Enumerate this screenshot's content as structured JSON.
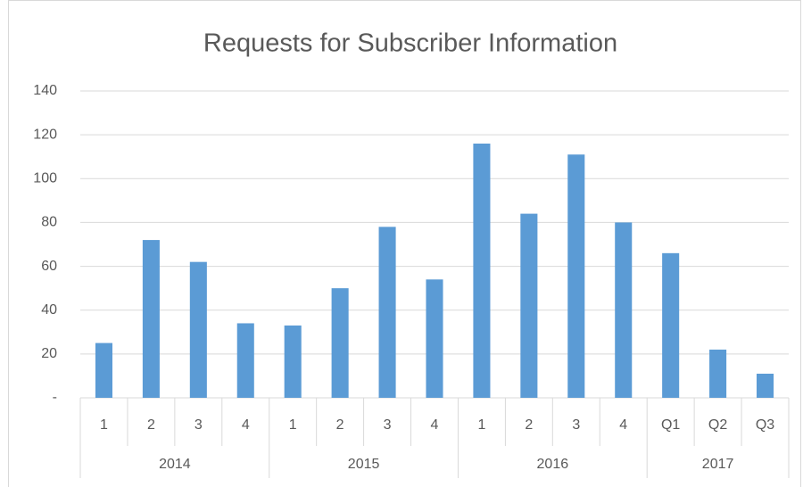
{
  "chart_data": {
    "type": "bar",
    "title": "Requests for Subscriber Information",
    "groups": [
      {
        "name": "2014",
        "categories": [
          "1",
          "2",
          "3",
          "4"
        ]
      },
      {
        "name": "2015",
        "categories": [
          "1",
          "2",
          "3",
          "4"
        ]
      },
      {
        "name": "2016",
        "categories": [
          "1",
          "2",
          "3",
          "4"
        ]
      },
      {
        "name": "2017",
        "categories": [
          "Q1",
          "Q2",
          "Q3"
        ]
      }
    ],
    "values": [
      25,
      72,
      62,
      34,
      33,
      50,
      78,
      54,
      116,
      84,
      111,
      80,
      66,
      22,
      11
    ],
    "color": "#5b9bd5",
    "ylim": [
      0,
      140
    ],
    "yticks": [
      {
        "value": 0,
        "label": "-"
      },
      20,
      40,
      60,
      80,
      100,
      120,
      140
    ],
    "grid": true
  }
}
